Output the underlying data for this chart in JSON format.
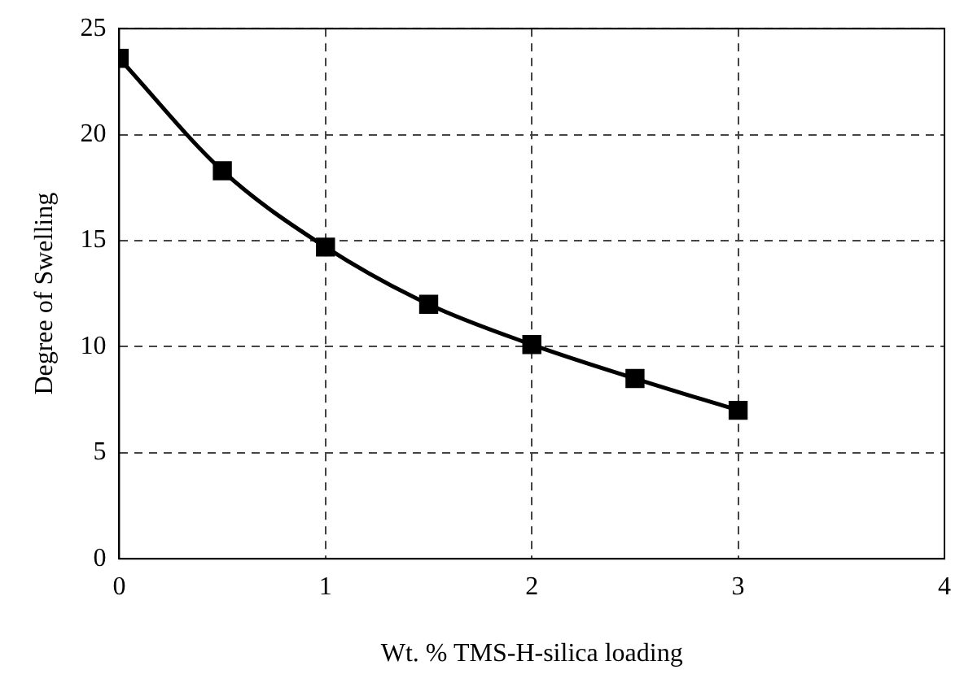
{
  "chart_data": {
    "type": "line",
    "xlabel": "Wt. % TMS-H-silica loading",
    "ylabel": "Degree of Swelling",
    "x": [
      0,
      0.5,
      1,
      1.5,
      2,
      2.5,
      3
    ],
    "series": [
      {
        "color": "#000000",
        "values": [
          23.6,
          18.3,
          14.7,
          12.0,
          10.1,
          8.5,
          7.0
        ]
      }
    ],
    "xlim": [
      0,
      4
    ],
    "xticks": [
      0,
      1,
      2,
      3,
      4
    ],
    "ylim": [
      0,
      25
    ],
    "yticks": [
      0,
      5,
      10,
      15,
      20,
      25
    ],
    "grid": true,
    "marker": "square",
    "line_style": "solid",
    "legend": false
  }
}
